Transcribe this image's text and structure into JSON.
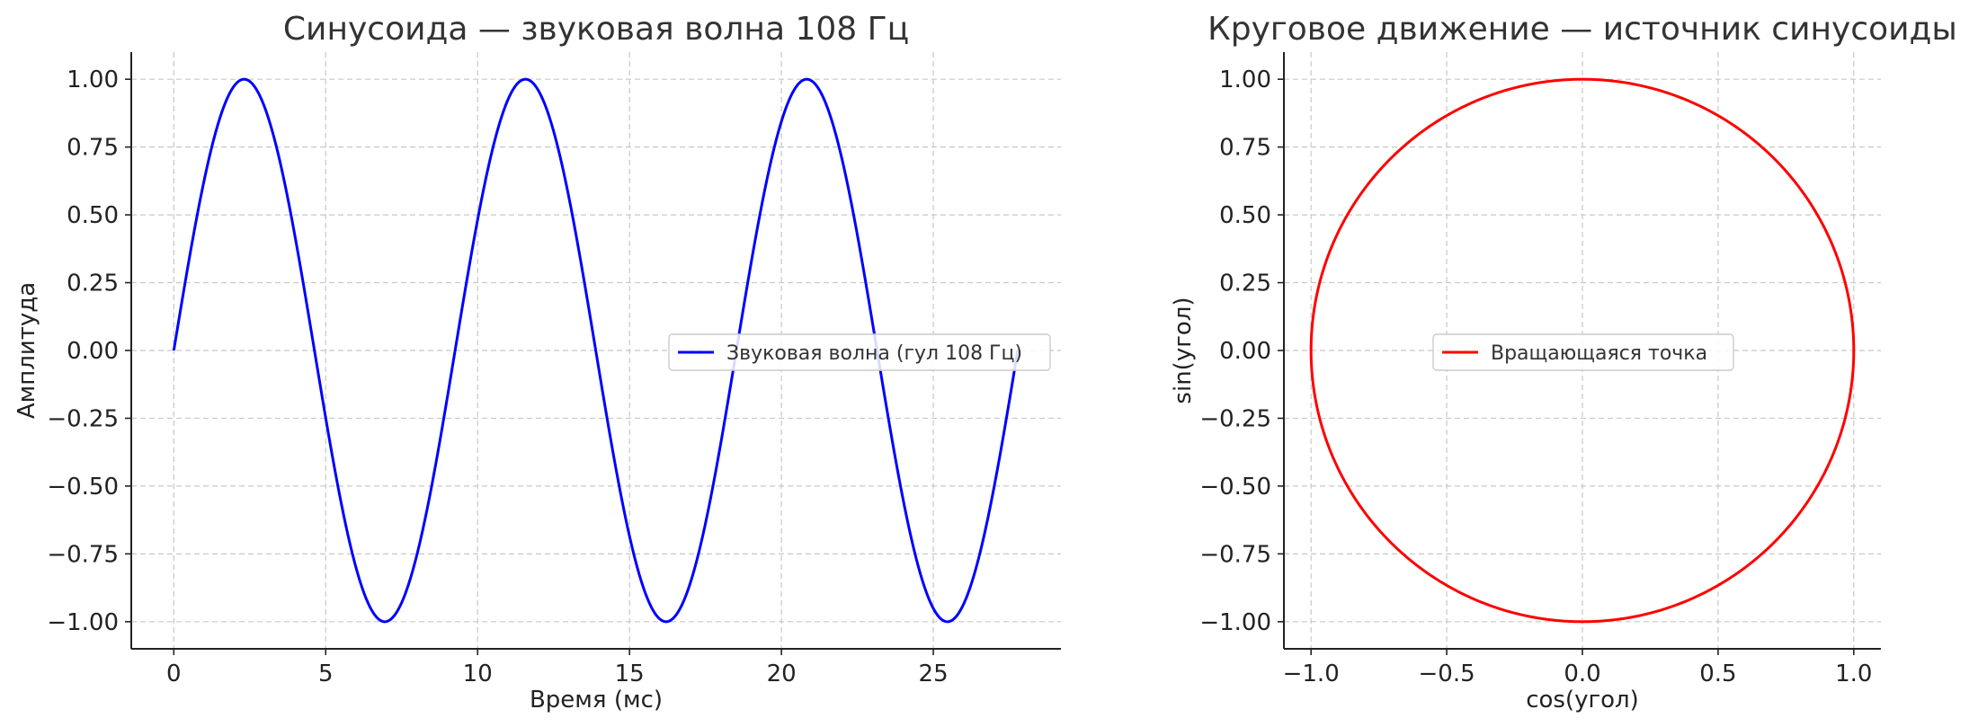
{
  "chart_data": [
    {
      "type": "line",
      "title": "Синусоида — звуковая волна 108 Гц",
      "xlabel": "Время (мс)",
      "ylabel": "Амплитуда",
      "xlim": [
        -1.4,
        29.2
      ],
      "ylim": [
        -1.1,
        1.1
      ],
      "xticks": [
        0,
        5,
        10,
        15,
        20,
        25
      ],
      "xtick_labels": [
        "0",
        "5",
        "10",
        "15",
        "20",
        "25"
      ],
      "yticks": [
        1.0,
        0.75,
        0.5,
        0.25,
        0.0,
        -0.25,
        -0.5,
        -0.75,
        -1.0
      ],
      "ytick_labels": [
        "1.00",
        "0.75",
        "0.50",
        "0.25",
        "0.00",
        "−0.25",
        "−0.50",
        "−0.75",
        "−1.00"
      ],
      "grid": true,
      "legend_position": "center-right",
      "series": [
        {
          "name": "Звуковая волна (гул 108 Гц)",
          "color": "#0000ff",
          "function": "sine",
          "frequency_hz": 108,
          "amplitude": 1.0,
          "x_range_ms": [
            0,
            27.78
          ]
        }
      ]
    },
    {
      "type": "line",
      "title": "Круговое движение — источник синусоиды",
      "xlabel": "cos(угол)",
      "ylabel": "sin(угол)",
      "xlim": [
        -1.1,
        1.1
      ],
      "ylim": [
        -1.1,
        1.1
      ],
      "xticks": [
        -1.0,
        -0.5,
        0.0,
        0.5,
        1.0
      ],
      "xtick_labels": [
        "−1.0",
        "−0.5",
        "0.0",
        "0.5",
        "1.0"
      ],
      "yticks": [
        1.0,
        0.75,
        0.5,
        0.25,
        0.0,
        -0.25,
        -0.5,
        -0.75,
        -1.0
      ],
      "ytick_labels": [
        "1.00",
        "0.75",
        "0.50",
        "0.25",
        "0.00",
        "−0.25",
        "−0.50",
        "−0.75",
        "−1.00"
      ],
      "grid": true,
      "legend_position": "center",
      "series": [
        {
          "name": "Вращающаяся точка",
          "color": "#ff0000",
          "function": "unit-circle",
          "radius": 1.0
        }
      ]
    }
  ]
}
